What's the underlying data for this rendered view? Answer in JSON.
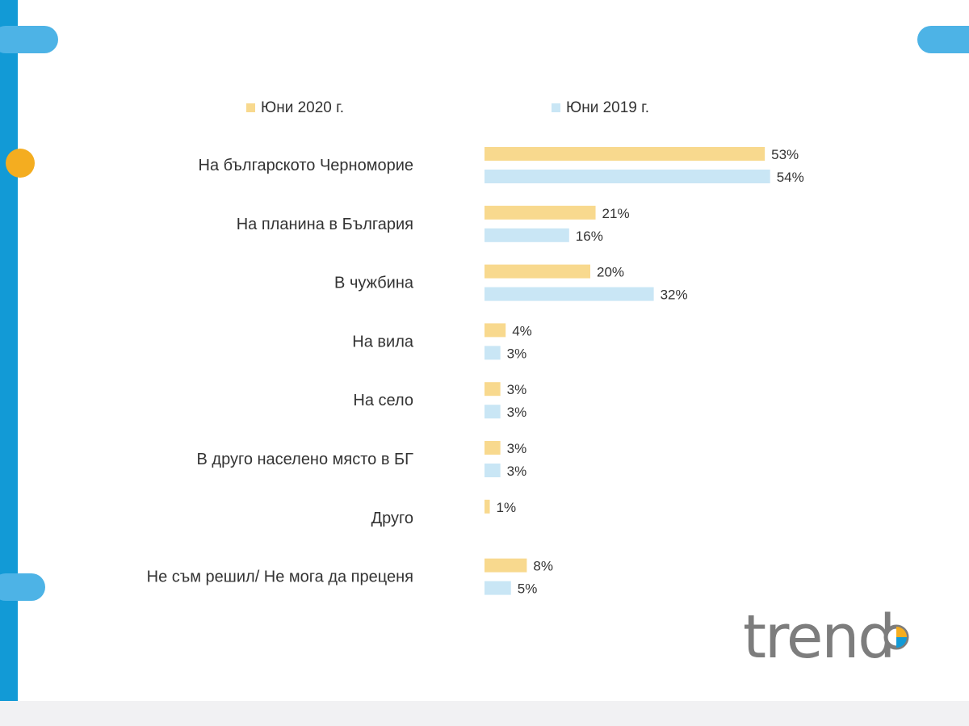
{
  "colors": {
    "series_2020": "#f8d98e",
    "series_2019": "#c9e6f5",
    "rail": "#129ad6",
    "tab": "#4db3e6",
    "dot": "#f4ad20",
    "text": "#333333",
    "logo": "#7d7d7d"
  },
  "logo": {
    "text": "trend"
  },
  "chart_data": {
    "type": "bar",
    "orientation": "horizontal",
    "categories": [
      "На българското Черноморие",
      "На планина в България",
      "В чужбина",
      "На вила",
      "На село",
      "В друго населено място в БГ",
      "Друго",
      "Не съм решил/ Не мога да преценя"
    ],
    "series": [
      {
        "name": "Юни 2020 г.",
        "values": [
          53,
          21,
          20,
          4,
          3,
          3,
          1,
          8
        ],
        "labels": [
          "53%",
          "21%",
          "20%",
          "4%",
          "3%",
          "3%",
          "1%",
          "8%"
        ]
      },
      {
        "name": "Юни 2019 г.",
        "values": [
          54,
          16,
          32,
          3,
          3,
          3,
          null,
          5
        ],
        "labels": [
          "54%",
          "16%",
          "32%",
          "3%",
          "3%",
          "3%",
          "",
          "5%"
        ]
      }
    ],
    "unit": "%",
    "grid": false,
    "legend_position": "top"
  }
}
